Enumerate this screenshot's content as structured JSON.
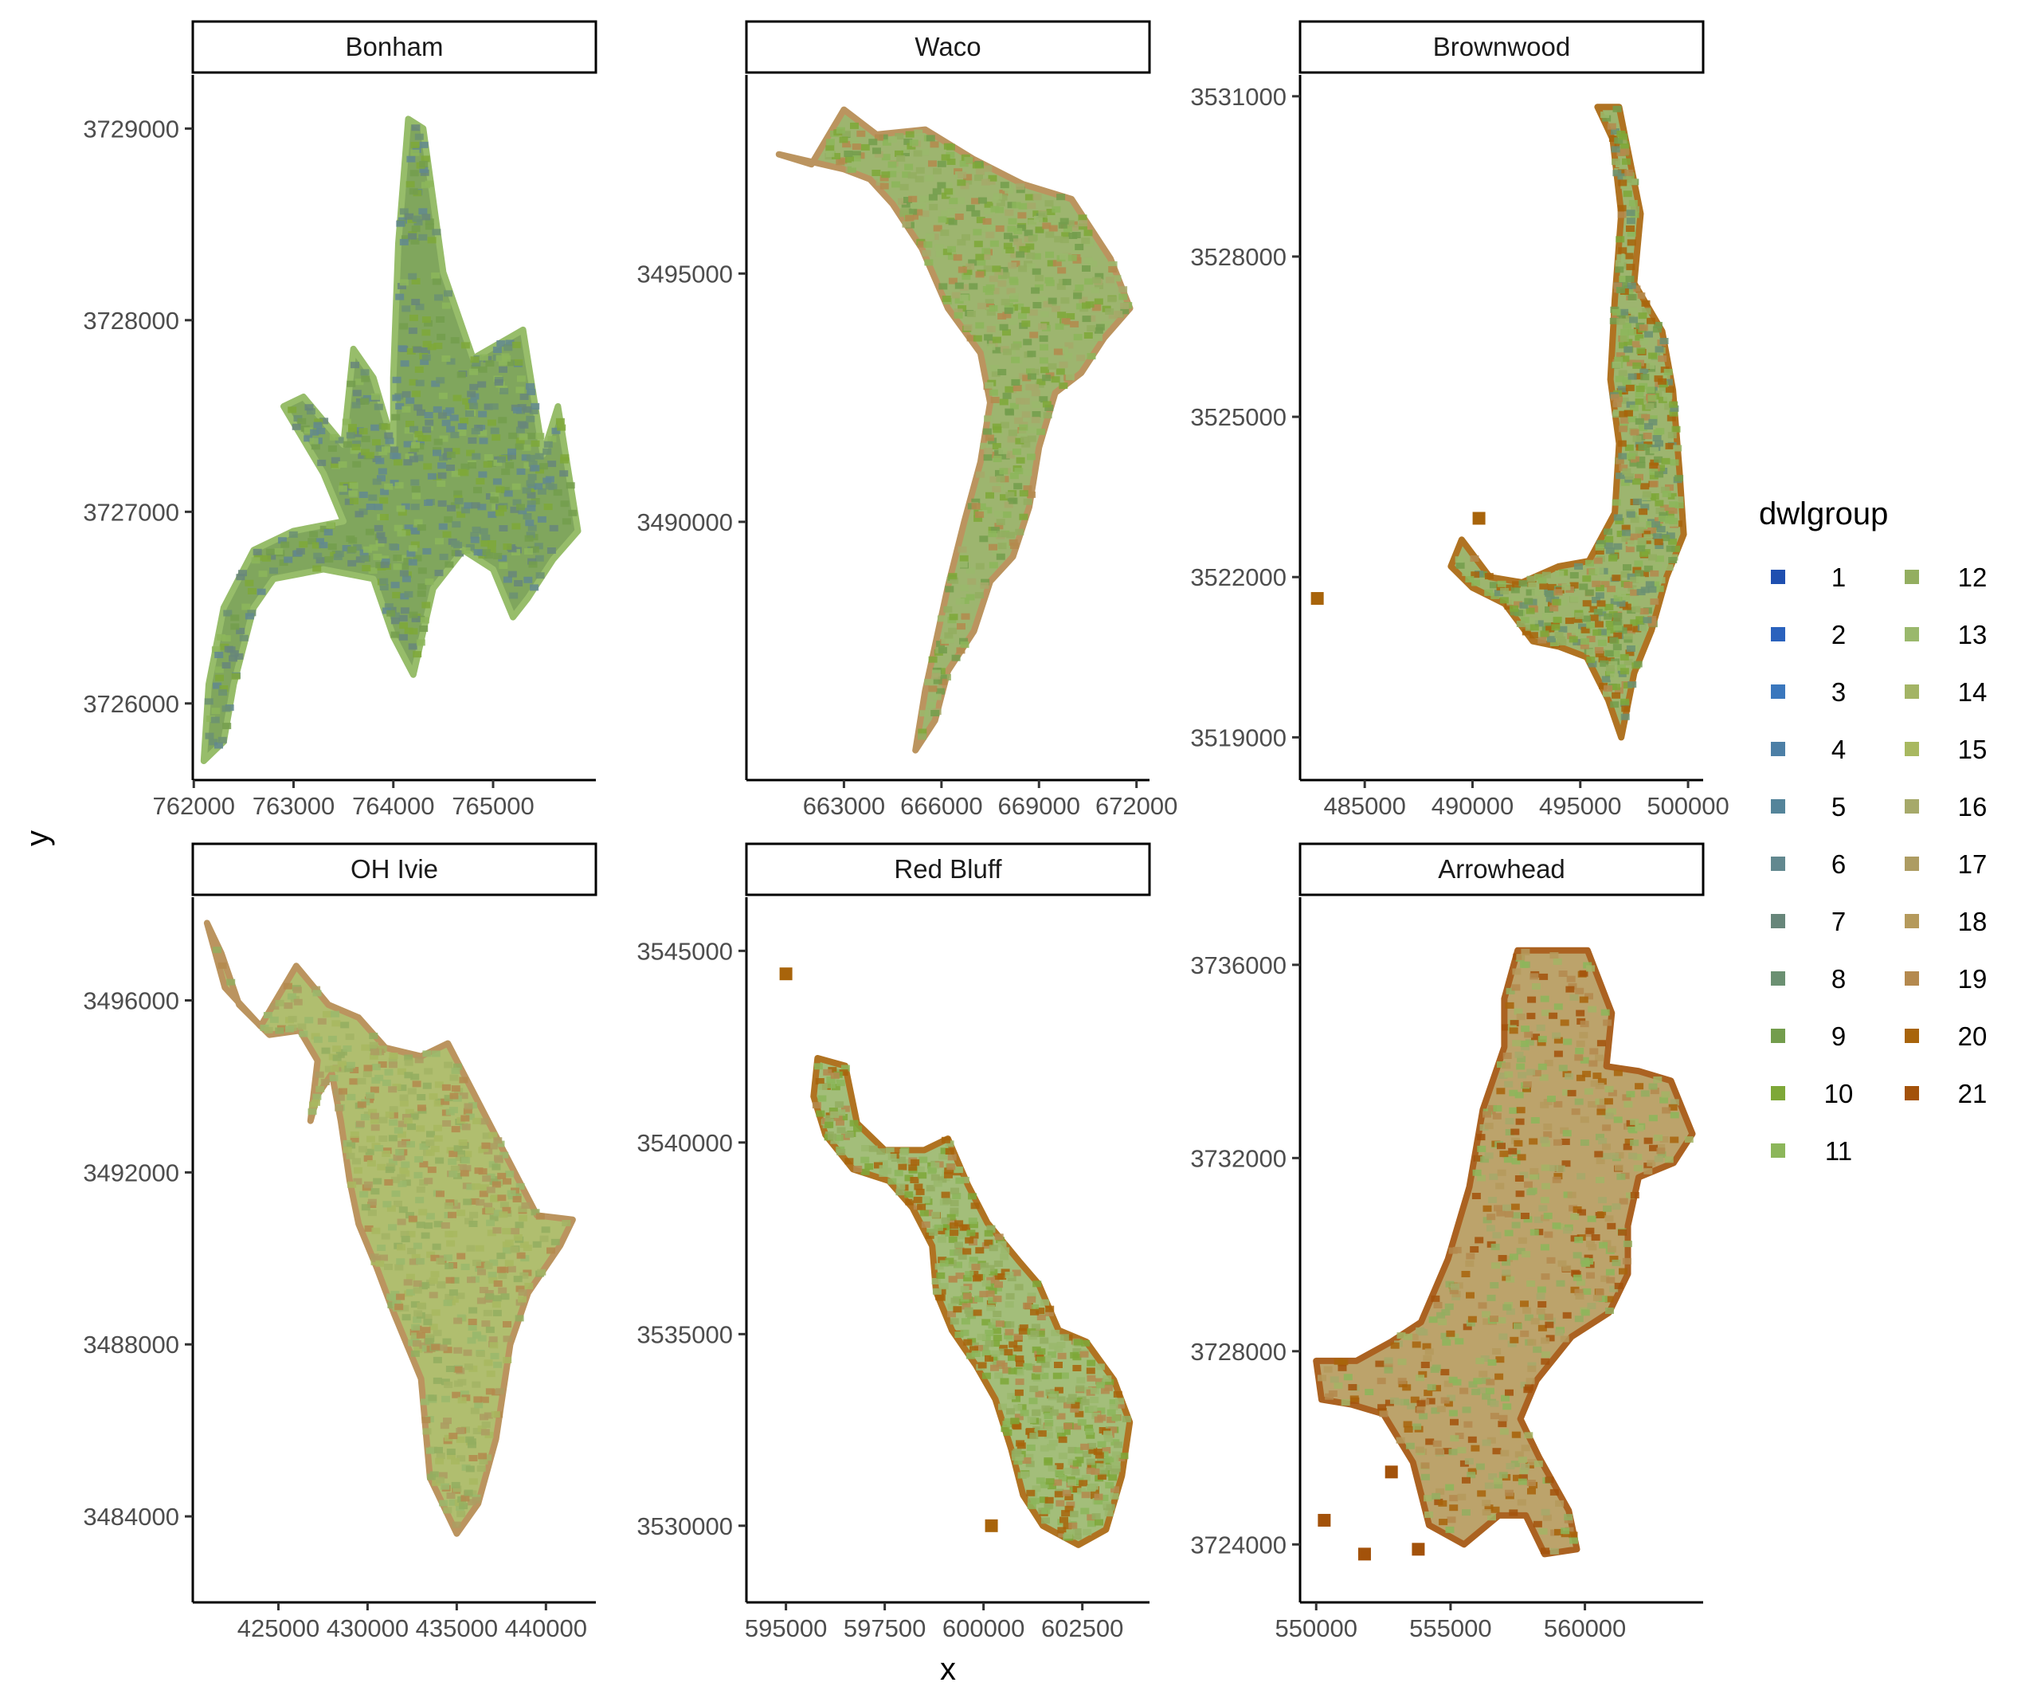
{
  "chart_data": {
    "type": "scatter",
    "layout": "facet grid 2 x 3, independent axes",
    "xlabel": "x",
    "ylabel": "y",
    "grid": false,
    "legend": {
      "title": "dwlgroup",
      "placement": "right",
      "columns": 2,
      "entries": [
        {
          "label": "1",
          "color": "#1f4fb0"
        },
        {
          "label": "2",
          "color": "#2a62bd"
        },
        {
          "label": "3",
          "color": "#3a77bd"
        },
        {
          "label": "4",
          "color": "#4c7fa6"
        },
        {
          "label": "5",
          "color": "#54849a"
        },
        {
          "label": "6",
          "color": "#62888f"
        },
        {
          "label": "7",
          "color": "#67867a"
        },
        {
          "label": "8",
          "color": "#6b9072"
        },
        {
          "label": "9",
          "color": "#739d4c"
        },
        {
          "label": "10",
          "color": "#7ea838"
        },
        {
          "label": "11",
          "color": "#8cb65a"
        },
        {
          "label": "12",
          "color": "#93ae60"
        },
        {
          "label": "13",
          "color": "#9ab86c"
        },
        {
          "label": "14",
          "color": "#a3b465"
        },
        {
          "label": "15",
          "color": "#a8b860"
        },
        {
          "label": "16",
          "color": "#a6a96a"
        },
        {
          "label": "17",
          "color": "#ad9c62"
        },
        {
          "label": "18",
          "color": "#b59a5c"
        },
        {
          "label": "19",
          "color": "#b4894e"
        },
        {
          "label": "20",
          "color": "#a8640b"
        },
        {
          "label": "21",
          "color": "#a3520a"
        }
      ]
    },
    "panels": [
      {
        "title": "Bonham",
        "xticks": [
          "762000",
          "763000",
          "764000",
          "765000"
        ],
        "yticks": [
          "3726000",
          "3727000",
          "3728000",
          "3729000"
        ],
        "xlim": [
          761990,
          766030
        ],
        "ylim": [
          3725600,
          3729280
        ],
        "dominant_groups": [
          "6",
          "7",
          "8",
          "9",
          "10",
          "11"
        ],
        "outline": [
          [
            764150,
            3729050
          ],
          [
            764300,
            3729000
          ],
          [
            764500,
            3728250
          ],
          [
            764800,
            3727800
          ],
          [
            765300,
            3727950
          ],
          [
            765500,
            3727300
          ],
          [
            765650,
            3727550
          ],
          [
            765850,
            3726900
          ],
          [
            765600,
            3726750
          ],
          [
            765350,
            3726550
          ],
          [
            765200,
            3726450
          ],
          [
            765000,
            3726700
          ],
          [
            764700,
            3726800
          ],
          [
            764400,
            3726600
          ],
          [
            764200,
            3726150
          ],
          [
            764000,
            3726350
          ],
          [
            763800,
            3726650
          ],
          [
            763300,
            3726700
          ],
          [
            762800,
            3726650
          ],
          [
            762600,
            3726500
          ],
          [
            762400,
            3726100
          ],
          [
            762300,
            3725800
          ],
          [
            762100,
            3725700
          ],
          [
            762150,
            3726100
          ],
          [
            762300,
            3726500
          ],
          [
            762600,
            3726800
          ],
          [
            763000,
            3726900
          ],
          [
            763500,
            3726950
          ],
          [
            763300,
            3727200
          ],
          [
            762900,
            3727550
          ],
          [
            763100,
            3727600
          ],
          [
            763500,
            3727350
          ],
          [
            763600,
            3727850
          ],
          [
            763800,
            3727700
          ],
          [
            764000,
            3727350
          ],
          [
            764000,
            3727700
          ],
          [
            764050,
            3728400
          ]
        ]
      },
      {
        "title": "Waco",
        "xticks": [
          "663000",
          "666000",
          "669000",
          "672000"
        ],
        "yticks": [
          "3490000",
          "3495000"
        ],
        "xlim": [
          660000,
          672400
        ],
        "ylim": [
          3484800,
          3499000
        ],
        "dominant_groups": [
          "9",
          "10",
          "11",
          "12",
          "13",
          "16",
          "19"
        ],
        "outline": [
          [
            661000,
            3497400
          ],
          [
            662000,
            3497200
          ],
          [
            663000,
            3498300
          ],
          [
            664000,
            3497800
          ],
          [
            665500,
            3497900
          ],
          [
            667000,
            3497300
          ],
          [
            668500,
            3496800
          ],
          [
            670000,
            3496500
          ],
          [
            671200,
            3495300
          ],
          [
            671800,
            3494300
          ],
          [
            671000,
            3493700
          ],
          [
            670300,
            3493000
          ],
          [
            669500,
            3492600
          ],
          [
            669000,
            3491500
          ],
          [
            668700,
            3490300
          ],
          [
            668200,
            3489300
          ],
          [
            667500,
            3488800
          ],
          [
            667000,
            3487800
          ],
          [
            666200,
            3487000
          ],
          [
            665800,
            3486000
          ],
          [
            665200,
            3485400
          ],
          [
            665500,
            3486600
          ],
          [
            665800,
            3487500
          ],
          [
            666200,
            3488700
          ],
          [
            666700,
            3490000
          ],
          [
            667200,
            3491200
          ],
          [
            667500,
            3492400
          ],
          [
            667200,
            3493400
          ],
          [
            666200,
            3494300
          ],
          [
            665400,
            3495500
          ],
          [
            664500,
            3496400
          ],
          [
            663800,
            3496900
          ],
          [
            663000,
            3497100
          ]
        ]
      },
      {
        "title": "Brownwood",
        "xticks": [
          "485000",
          "490000",
          "495000",
          "500000"
        ],
        "yticks": [
          "3519000",
          "3522000",
          "3525000",
          "3528000",
          "3531000"
        ],
        "xlim": [
          482000,
          500700
        ],
        "ylim": [
          3518200,
          3531400
        ],
        "dominant_groups": [
          "8",
          "9",
          "10",
          "11",
          "12",
          "13",
          "19",
          "20"
        ],
        "outline": [
          [
            496800,
            3530800
          ],
          [
            497200,
            3530000
          ],
          [
            497800,
            3528800
          ],
          [
            497500,
            3527500
          ],
          [
            498800,
            3526600
          ],
          [
            499300,
            3525500
          ],
          [
            499600,
            3524000
          ],
          [
            499800,
            3522800
          ],
          [
            499000,
            3522000
          ],
          [
            498300,
            3521000
          ],
          [
            497500,
            3520200
          ],
          [
            496900,
            3519000
          ],
          [
            496300,
            3519700
          ],
          [
            495300,
            3520500
          ],
          [
            494000,
            3520700
          ],
          [
            492800,
            3520800
          ],
          [
            491500,
            3521500
          ],
          [
            490000,
            3521800
          ],
          [
            489000,
            3522200
          ],
          [
            489500,
            3522700
          ],
          [
            490800,
            3522000
          ],
          [
            492300,
            3521900
          ],
          [
            494000,
            3522200
          ],
          [
            495400,
            3522300
          ],
          [
            496600,
            3523200
          ],
          [
            496800,
            3524500
          ],
          [
            496400,
            3525700
          ],
          [
            496600,
            3527200
          ],
          [
            496900,
            3528800
          ],
          [
            496500,
            3530200
          ],
          [
            495800,
            3530800
          ]
        ],
        "outliers": [
          [
            482800,
            3521600
          ],
          [
            490300,
            3523100
          ]
        ]
      },
      {
        "title": "OH Ivie",
        "xticks": [
          "425000",
          "430000",
          "435000",
          "440000"
        ],
        "yticks": [
          "3484000",
          "3488000",
          "3492000",
          "3496000"
        ],
        "xlim": [
          420200,
          442800
        ],
        "ylim": [
          3482000,
          3498400
        ],
        "dominant_groups": [
          "12",
          "13",
          "14",
          "15",
          "17",
          "19"
        ],
        "outline": [
          [
            421000,
            3497800
          ],
          [
            422000,
            3496300
          ],
          [
            424000,
            3495400
          ],
          [
            426000,
            3496800
          ],
          [
            427800,
            3495900
          ],
          [
            429500,
            3495600
          ],
          [
            431000,
            3494900
          ],
          [
            433000,
            3494700
          ],
          [
            434500,
            3495000
          ],
          [
            436000,
            3493800
          ],
          [
            437500,
            3492600
          ],
          [
            439500,
            3491000
          ],
          [
            441500,
            3490900
          ],
          [
            440800,
            3490300
          ],
          [
            439000,
            3489200
          ],
          [
            438000,
            3488000
          ],
          [
            437200,
            3485800
          ],
          [
            436200,
            3484300
          ],
          [
            435000,
            3483600
          ],
          [
            433500,
            3484900
          ],
          [
            433000,
            3487200
          ],
          [
            431500,
            3488700
          ],
          [
            430500,
            3489800
          ],
          [
            429500,
            3490800
          ],
          [
            429000,
            3491800
          ],
          [
            428500,
            3493200
          ],
          [
            428000,
            3494300
          ],
          [
            427200,
            3493800
          ],
          [
            426800,
            3493200
          ],
          [
            427200,
            3494600
          ],
          [
            426200,
            3495300
          ],
          [
            424500,
            3495200
          ],
          [
            422800,
            3495900
          ],
          [
            421800,
            3497100
          ]
        ]
      },
      {
        "title": "Red Bluff",
        "xticks": [
          "595000",
          "597500",
          "600000",
          "602500"
        ],
        "yticks": [
          "3530000",
          "3535000",
          "3540000",
          "3545000"
        ],
        "xlim": [
          594000,
          604200
        ],
        "ylim": [
          3528000,
          3546400
        ],
        "dominant_groups": [
          "10",
          "11",
          "12",
          "13",
          "19",
          "20"
        ],
        "outline": [
          [
            595800,
            3542200
          ],
          [
            596500,
            3542000
          ],
          [
            596800,
            3540500
          ],
          [
            597500,
            3539800
          ],
          [
            598500,
            3539800
          ],
          [
            599100,
            3540100
          ],
          [
            599600,
            3538900
          ],
          [
            600100,
            3537900
          ],
          [
            600900,
            3536900
          ],
          [
            601400,
            3536300
          ],
          [
            601900,
            3535100
          ],
          [
            602600,
            3534800
          ],
          [
            603300,
            3533800
          ],
          [
            603700,
            3532700
          ],
          [
            603500,
            3531300
          ],
          [
            603100,
            3529900
          ],
          [
            602400,
            3529500
          ],
          [
            601500,
            3530000
          ],
          [
            601000,
            3530800
          ],
          [
            600700,
            3532000
          ],
          [
            600300,
            3533300
          ],
          [
            599800,
            3534200
          ],
          [
            599200,
            3535100
          ],
          [
            598800,
            3536100
          ],
          [
            598700,
            3537300
          ],
          [
            598200,
            3538300
          ],
          [
            597600,
            3539000
          ],
          [
            596700,
            3539300
          ],
          [
            596000,
            3540200
          ],
          [
            595700,
            3541200
          ]
        ],
        "outliers": [
          [
            595000,
            3544400
          ],
          [
            600200,
            3530000
          ]
        ]
      },
      {
        "title": "Arrowhead",
        "xticks": [
          "550000",
          "555000",
          "560000"
        ],
        "yticks": [
          "3724000",
          "3728000",
          "3732000",
          "3736000"
        ],
        "xlim": [
          549400,
          564400
        ],
        "ylim": [
          3722800,
          3737400
        ],
        "dominant_groups": [
          "11",
          "12",
          "14",
          "16",
          "18",
          "19",
          "20",
          "21"
        ],
        "outline": [
          [
            557500,
            3736300
          ],
          [
            560100,
            3736300
          ],
          [
            561000,
            3735000
          ],
          [
            560800,
            3733900
          ],
          [
            562000,
            3733800
          ],
          [
            563200,
            3733600
          ],
          [
            564000,
            3732500
          ],
          [
            563300,
            3731900
          ],
          [
            562000,
            3731600
          ],
          [
            561600,
            3730600
          ],
          [
            561600,
            3729600
          ],
          [
            560900,
            3728800
          ],
          [
            559500,
            3728300
          ],
          [
            558200,
            3727400
          ],
          [
            557600,
            3726600
          ],
          [
            558300,
            3725800
          ],
          [
            559400,
            3724700
          ],
          [
            559700,
            3723900
          ],
          [
            558500,
            3723800
          ],
          [
            557800,
            3724600
          ],
          [
            556800,
            3724600
          ],
          [
            555500,
            3724000
          ],
          [
            554200,
            3724400
          ],
          [
            553600,
            3725700
          ],
          [
            552500,
            3726700
          ],
          [
            551300,
            3726900
          ],
          [
            550200,
            3727000
          ],
          [
            550000,
            3727800
          ],
          [
            551500,
            3727800
          ],
          [
            552800,
            3728200
          ],
          [
            553900,
            3728600
          ],
          [
            554900,
            3729900
          ],
          [
            555700,
            3731400
          ],
          [
            556200,
            3733000
          ],
          [
            557000,
            3734300
          ],
          [
            557000,
            3735300
          ]
        ],
        "outliers": [
          [
            550300,
            3724500
          ],
          [
            551800,
            3723800
          ],
          [
            553800,
            3723900
          ],
          [
            552800,
            3725500
          ]
        ]
      }
    ]
  }
}
